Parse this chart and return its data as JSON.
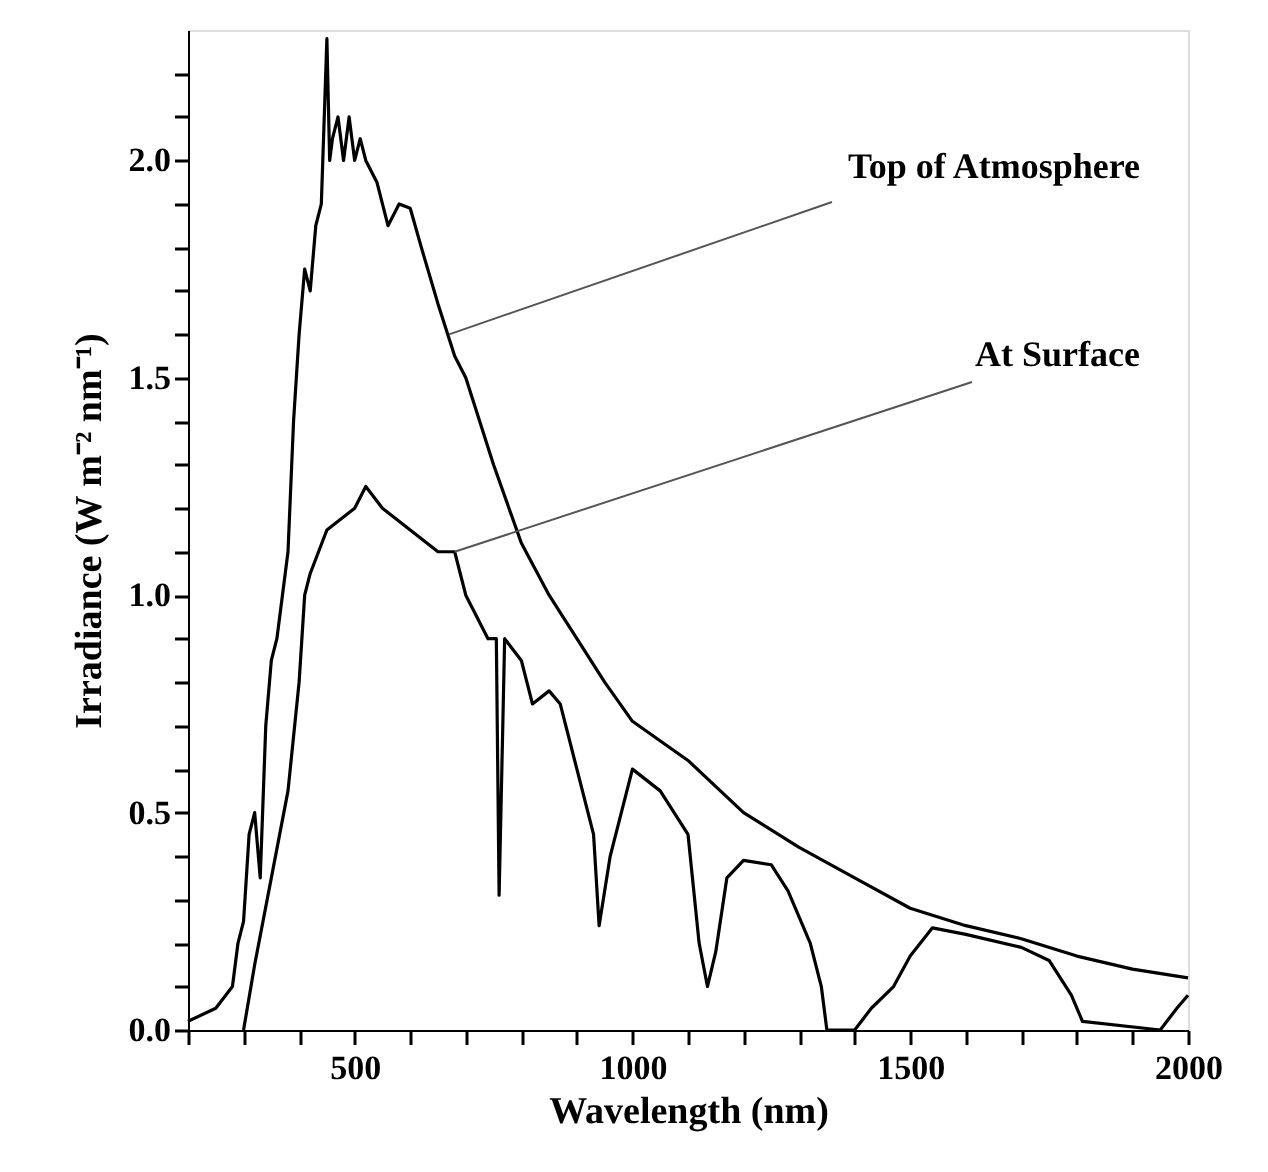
{
  "chart_data": {
    "type": "line",
    "xlabel": "Wavelength (nm)",
    "ylabel": "Irradiance (W m⁻² nm⁻¹)",
    "xlim": [
      200,
      2000
    ],
    "ylim": [
      0,
      2.3
    ],
    "xticks": [
      {
        "value": 200,
        "label": null
      },
      {
        "value": 300,
        "label": null
      },
      {
        "value": 400,
        "label": null
      },
      500,
      {
        "value": 600,
        "label": null
      },
      {
        "value": 700,
        "label": null
      },
      {
        "value": 800,
        "label": null
      },
      {
        "value": 900,
        "label": null
      },
      1000,
      {
        "value": 1100,
        "label": null
      },
      {
        "value": 1200,
        "label": null
      },
      {
        "value": 1300,
        "label": null
      },
      {
        "value": 1400,
        "label": null
      },
      1500,
      {
        "value": 1600,
        "label": null
      },
      {
        "value": 1700,
        "label": null
      },
      {
        "value": 1800,
        "label": null
      },
      {
        "value": 1900,
        "label": null
      },
      2000
    ],
    "yticks": [
      {
        "value": 0,
        "label": "0.0"
      },
      {
        "value": 0.1,
        "label": null
      },
      {
        "value": 0.2,
        "label": null
      },
      {
        "value": 0.3,
        "label": null
      },
      {
        "value": 0.4,
        "label": null
      },
      {
        "value": 0.5,
        "label": "0.5"
      },
      {
        "value": 0.6,
        "label": null
      },
      {
        "value": 0.7,
        "label": null
      },
      {
        "value": 0.8,
        "label": null
      },
      {
        "value": 0.9,
        "label": null
      },
      {
        "value": 1,
        "label": "1.0"
      },
      {
        "value": 1.1,
        "label": null
      },
      {
        "value": 1.2,
        "label": null
      },
      {
        "value": 1.3,
        "label": null
      },
      {
        "value": 1.4,
        "label": null
      },
      {
        "value": 1.5,
        "label": "1.5"
      },
      {
        "value": 1.6,
        "label": null
      },
      {
        "value": 1.7,
        "label": null
      },
      {
        "value": 1.8,
        "label": null
      },
      {
        "value": 1.9,
        "label": null
      },
      {
        "value": 2,
        "label": "2.0"
      },
      {
        "value": 2.1,
        "label": null
      },
      {
        "value": 2.2,
        "label": null
      }
    ],
    "grid": false,
    "marker": "none",
    "line_style": "solid",
    "series": [
      {
        "color": "#000000",
        "x": [
          200,
          250,
          280,
          290,
          300,
          310,
          320,
          330,
          340,
          350,
          360,
          370,
          380,
          390,
          400,
          410,
          420,
          430,
          440,
          450,
          455,
          460,
          470,
          480,
          490,
          500,
          510,
          520,
          540,
          560,
          580,
          600,
          620,
          650,
          680,
          700,
          750,
          800,
          850,
          900,
          950,
          1000,
          1100,
          1200,
          1300,
          1400,
          1500,
          1600,
          1700,
          1800,
          1900,
          2000
        ],
        "values": [
          0.02,
          0.05,
          0.1,
          0.2,
          0.25,
          0.45,
          0.5,
          0.35,
          0.7,
          0.85,
          0.9,
          1.0,
          1.1,
          1.4,
          1.6,
          1.75,
          1.7,
          1.85,
          1.9,
          2.28,
          2.0,
          2.05,
          2.1,
          2.0,
          2.1,
          2.0,
          2.05,
          2.0,
          1.95,
          1.85,
          1.9,
          1.89,
          1.8,
          1.67,
          1.55,
          1.5,
          1.3,
          1.12,
          1.0,
          0.9,
          0.8,
          0.71,
          0.62,
          0.5,
          0.42,
          0.35,
          0.28,
          0.24,
          0.21,
          0.17,
          0.14,
          0.12
        ]
      },
      {
        "color": "#000000",
        "x": [
          300,
          320,
          350,
          380,
          400,
          410,
          420,
          450,
          500,
          520,
          550,
          600,
          650,
          680,
          700,
          720,
          740,
          755,
          760,
          770,
          800,
          820,
          850,
          870,
          900,
          930,
          940,
          960,
          1000,
          1050,
          1100,
          1120,
          1135,
          1150,
          1170,
          1200,
          1250,
          1280,
          1320,
          1340,
          1350,
          1400,
          1430,
          1470,
          1500,
          1540,
          1600,
          1700,
          1750,
          1790,
          1810,
          1950,
          1980,
          2000
        ],
        "values": [
          0,
          0.15,
          0.35,
          0.55,
          0.8,
          1.0,
          1.05,
          1.15,
          1.2,
          1.25,
          1.2,
          1.15,
          1.1,
          1.1,
          1.0,
          0.95,
          0.9,
          0.9,
          0.31,
          0.9,
          0.85,
          0.75,
          0.78,
          0.75,
          0.6,
          0.45,
          0.24,
          0.4,
          0.6,
          0.55,
          0.45,
          0.2,
          0.1,
          0.18,
          0.35,
          0.39,
          0.38,
          0.32,
          0.2,
          0.1,
          0,
          0,
          0.05,
          0.1,
          0.17,
          0.235,
          0.22,
          0.19,
          0.16,
          0.08,
          0.02,
          0,
          0.05,
          0.08
        ]
      }
    ],
    "annotations": [
      {
        "text": "Top of Atmosphere",
        "x": 670,
        "y": 1.6
      },
      {
        "text": "At Surface",
        "x": 680,
        "y": 1.1
      }
    ]
  }
}
